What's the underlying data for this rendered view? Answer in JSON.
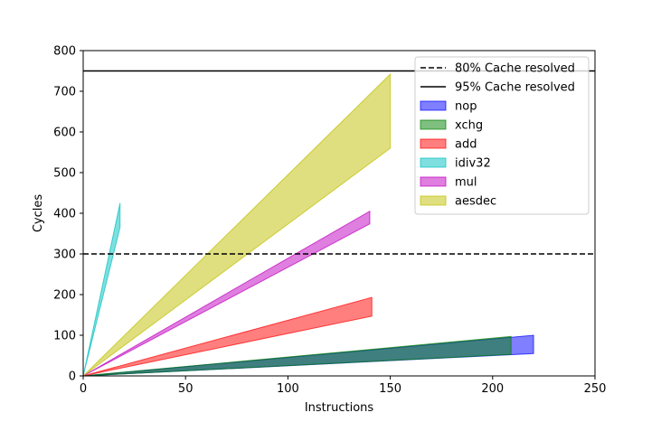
{
  "chart_data": {
    "type": "area",
    "xlabel": "Instructions",
    "ylabel": "Cycles",
    "xlim": [
      0,
      250
    ],
    "ylim": [
      0,
      800
    ],
    "x_ticks": [
      "0",
      "50",
      "100",
      "150",
      "200",
      "250"
    ],
    "y_ticks": [
      "0",
      "100",
      "200",
      "300",
      "400",
      "500",
      "600",
      "700",
      "800"
    ],
    "grid": false,
    "legend_position": "top-right",
    "reference_lines": [
      {
        "name": "80% Cache resolved",
        "y": 300,
        "style": "dashed",
        "color": "#000000"
      },
      {
        "name": "95% Cache resolved",
        "y": 750,
        "style": "solid",
        "color": "#000000"
      }
    ],
    "series": [
      {
        "name": "nop",
        "color": "#0000ff",
        "x": [
          0,
          220
        ],
        "lower": [
          0,
          55
        ],
        "upper": [
          0,
          100
        ]
      },
      {
        "name": "xchg",
        "color": "#008000",
        "x": [
          0,
          209
        ],
        "lower": [
          0,
          53
        ],
        "upper": [
          0,
          97
        ]
      },
      {
        "name": "add",
        "color": "#ff0000",
        "x": [
          0,
          141
        ],
        "lower": [
          0,
          147
        ],
        "upper": [
          0,
          193
        ]
      },
      {
        "name": "idiv32",
        "color": "#00bfbf",
        "x": [
          0,
          18
        ],
        "lower": [
          0,
          365
        ],
        "upper": [
          0,
          425
        ]
      },
      {
        "name": "mul",
        "color": "#bf00bf",
        "x": [
          0,
          140
        ],
        "lower": [
          0,
          374
        ],
        "upper": [
          0,
          405
        ]
      },
      {
        "name": "aesdec",
        "color": "#bfbf00",
        "x": [
          0,
          150
        ],
        "lower": [
          0,
          560
        ],
        "upper": [
          0,
          742
        ]
      }
    ]
  }
}
